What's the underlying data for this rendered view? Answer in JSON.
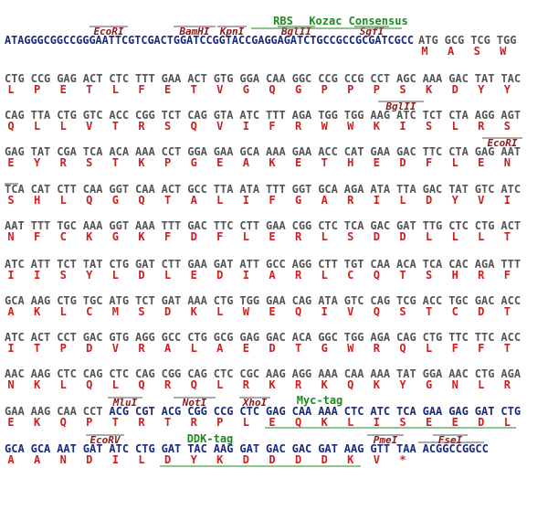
{
  "rows": [
    {
      "leader": "ATAGGGCGGCCGGGAATTCGTCGACTGGATCCGGTACCGAGGAGATCTGCCGCCGCGATCGCC",
      "codons": [
        "ATG",
        "GCG",
        "TCG",
        "TGG"
      ],
      "aminoacids": [
        "M",
        "A",
        "S",
        "W"
      ],
      "sites": [
        "EcoRI",
        "BamHI",
        "KpnI",
        "BglII",
        "SgfI"
      ],
      "tags": [
        "RBS",
        "Kozac Consensus"
      ]
    },
    {
      "codons": [
        "CTG",
        "CCG",
        "GAG",
        "ACT",
        "CTC",
        "TTT",
        "GAA",
        "ACT",
        "GTG",
        "GGA",
        "CAA",
        "GGC",
        "CCG",
        "CCG",
        "CCT",
        "AGC",
        "AAA",
        "GAC",
        "TAT",
        "TAC"
      ],
      "aminoacids": [
        "L",
        "P",
        "E",
        "T",
        "L",
        "F",
        "E",
        "T",
        "V",
        "G",
        "Q",
        "G",
        "P",
        "P",
        "P",
        "S",
        "K",
        "D",
        "Y",
        "Y"
      ]
    },
    {
      "codons": [
        "CAG",
        "TTA",
        "CTG",
        "GTC",
        "ACC",
        "CGG",
        "TCT",
        "CAG",
        "GTA",
        "ATC",
        "TTT",
        "AGA",
        "TGG",
        "TGG",
        "AAG",
        "ATC",
        "TCT",
        "CTA",
        "AGG",
        "AGT"
      ],
      "aminoacids": [
        "Q",
        "L",
        "L",
        "V",
        "T",
        "R",
        "S",
        "Q",
        "V",
        "I",
        "F",
        "R",
        "W",
        "W",
        "K",
        "I",
        "S",
        "L",
        "R",
        "S"
      ],
      "sites": [
        "BglII"
      ]
    },
    {
      "codons": [
        "GAG",
        "TAT",
        "CGA",
        "TCA",
        "ACA",
        "AAA",
        "CCT",
        "GGA",
        "GAA",
        "GCA",
        "AAA",
        "GAA",
        "ACC",
        "CAT",
        "GAA",
        "GAC",
        "TTC",
        "CTA",
        "GAG",
        "AAT"
      ],
      "aminoacids": [
        "E",
        "Y",
        "R",
        "S",
        "T",
        "K",
        "P",
        "G",
        "E",
        "A",
        "K",
        "E",
        "T",
        "H",
        "E",
        "D",
        "F",
        "L",
        "E",
        "N"
      ],
      "sites": [
        "EcoRI"
      ]
    },
    {
      "codons": [
        "TCA",
        "CAT",
        "CTT",
        "CAA",
        "GGT",
        "CAA",
        "ACT",
        "GCC",
        "TTA",
        "ATA",
        "TTT",
        "GGT",
        "GCA",
        "AGA",
        "ATA",
        "TTA",
        "GAC",
        "TAT",
        "GTC",
        "ATC"
      ],
      "aminoacids": [
        "S",
        "H",
        "L",
        "Q",
        "G",
        "Q",
        "T",
        "A",
        "L",
        "I",
        "F",
        "G",
        "A",
        "R",
        "I",
        "L",
        "D",
        "Y",
        "V",
        "I"
      ]
    },
    {
      "codons": [
        "AAT",
        "TTT",
        "TGC",
        "AAA",
        "GGT",
        "AAA",
        "TTT",
        "GAC",
        "TTC",
        "CTT",
        "GAA",
        "CGG",
        "CTC",
        "TCA",
        "GAC",
        "GAT",
        "TTG",
        "CTC",
        "CTG",
        "ACT"
      ],
      "aminoacids": [
        "N",
        "F",
        "C",
        "K",
        "G",
        "K",
        "F",
        "D",
        "F",
        "L",
        "E",
        "R",
        "L",
        "S",
        "D",
        "D",
        "L",
        "L",
        "L",
        "T"
      ]
    },
    {
      "codons": [
        "ATC",
        "ATT",
        "TCT",
        "TAT",
        "CTG",
        "GAT",
        "CTT",
        "GAA",
        "GAT",
        "ATT",
        "GCC",
        "AGG",
        "CTT",
        "TGT",
        "CAA",
        "ACA",
        "TCA",
        "CAC",
        "AGA",
        "TTT"
      ],
      "aminoacids": [
        "I",
        "I",
        "S",
        "Y",
        "L",
        "D",
        "L",
        "E",
        "D",
        "I",
        "A",
        "R",
        "L",
        "C",
        "Q",
        "T",
        "S",
        "H",
        "R",
        "F"
      ]
    },
    {
      "codons": [
        "GCA",
        "AAG",
        "CTG",
        "TGC",
        "ATG",
        "TCT",
        "GAT",
        "AAA",
        "CTG",
        "TGG",
        "GAA",
        "CAG",
        "ATA",
        "GTC",
        "CAG",
        "TCG",
        "ACC",
        "TGC",
        "GAC",
        "ACC"
      ],
      "aminoacids": [
        "A",
        "K",
        "L",
        "C",
        "M",
        "S",
        "D",
        "K",
        "L",
        "W",
        "E",
        "Q",
        "I",
        "V",
        "Q",
        "S",
        "T",
        "C",
        "D",
        "T"
      ]
    },
    {
      "codons": [
        "ATC",
        "ACT",
        "CCT",
        "GAC",
        "GTG",
        "AGG",
        "GCC",
        "CTG",
        "GCG",
        "GAG",
        "GAC",
        "ACA",
        "GGC",
        "TGG",
        "AGA",
        "CAG",
        "CTG",
        "TTC",
        "TTC",
        "ACC"
      ],
      "aminoacids": [
        "I",
        "T",
        "P",
        "D",
        "V",
        "R",
        "A",
        "L",
        "A",
        "E",
        "D",
        "T",
        "G",
        "W",
        "R",
        "Q",
        "L",
        "F",
        "F",
        "T"
      ]
    },
    {
      "codons": [
        "AAC",
        "AAG",
        "CTC",
        "CAG",
        "CTC",
        "CAG",
        "CGG",
        "CAG",
        "CTC",
        "CGC",
        "AAG",
        "AGG",
        "AAA",
        "CAA",
        "AAA",
        "TAT",
        "GGA",
        "AAC",
        "CTG",
        "AGA"
      ],
      "aminoacids": [
        "N",
        "K",
        "L",
        "Q",
        "L",
        "Q",
        "R",
        "Q",
        "L",
        "R",
        "K",
        "R",
        "K",
        "Q",
        "K",
        "Y",
        "G",
        "N",
        "L",
        "R"
      ]
    },
    {
      "codons": [
        "GAA",
        "AAG",
        "CAA",
        "CCT",
        "ACG",
        "CGT",
        "ACG",
        "CGG",
        "CCG",
        "CTC",
        "GAG",
        "CAA",
        "AAA",
        "CTC",
        "ATC",
        "TCA",
        "GAA",
        "GAG",
        "GAT",
        "CTG"
      ],
      "aminoacids": [
        "E",
        "K",
        "Q",
        "P",
        "T",
        "R",
        "T",
        "R",
        "P",
        "L",
        "E",
        "Q",
        "K",
        "L",
        "I",
        "S",
        "E",
        "E",
        "D",
        "L"
      ],
      "sites": [
        "MluI",
        "NotI",
        "XhoI"
      ],
      "tags": [
        "Myc-tag"
      ]
    },
    {
      "codons": [
        "GCA",
        "GCA",
        "AAT",
        "GAT",
        "ATC",
        "CTG",
        "GAT",
        "TAC",
        "AAG",
        "GAT",
        "GAC",
        "GAC",
        "GAT",
        "AAG",
        "GTT",
        "TAA"
      ],
      "aminoacids": [
        "A",
        "A",
        "N",
        "D",
        "I",
        "L",
        "D",
        "Y",
        "K",
        "D",
        "D",
        "D",
        "D",
        "K",
        "V",
        "*"
      ],
      "tail": "ACGGCCGGCC",
      "sites": [
        "EcoRV",
        "PmeI",
        "FseI"
      ],
      "tags": [
        "DDK-tag"
      ]
    }
  ]
}
